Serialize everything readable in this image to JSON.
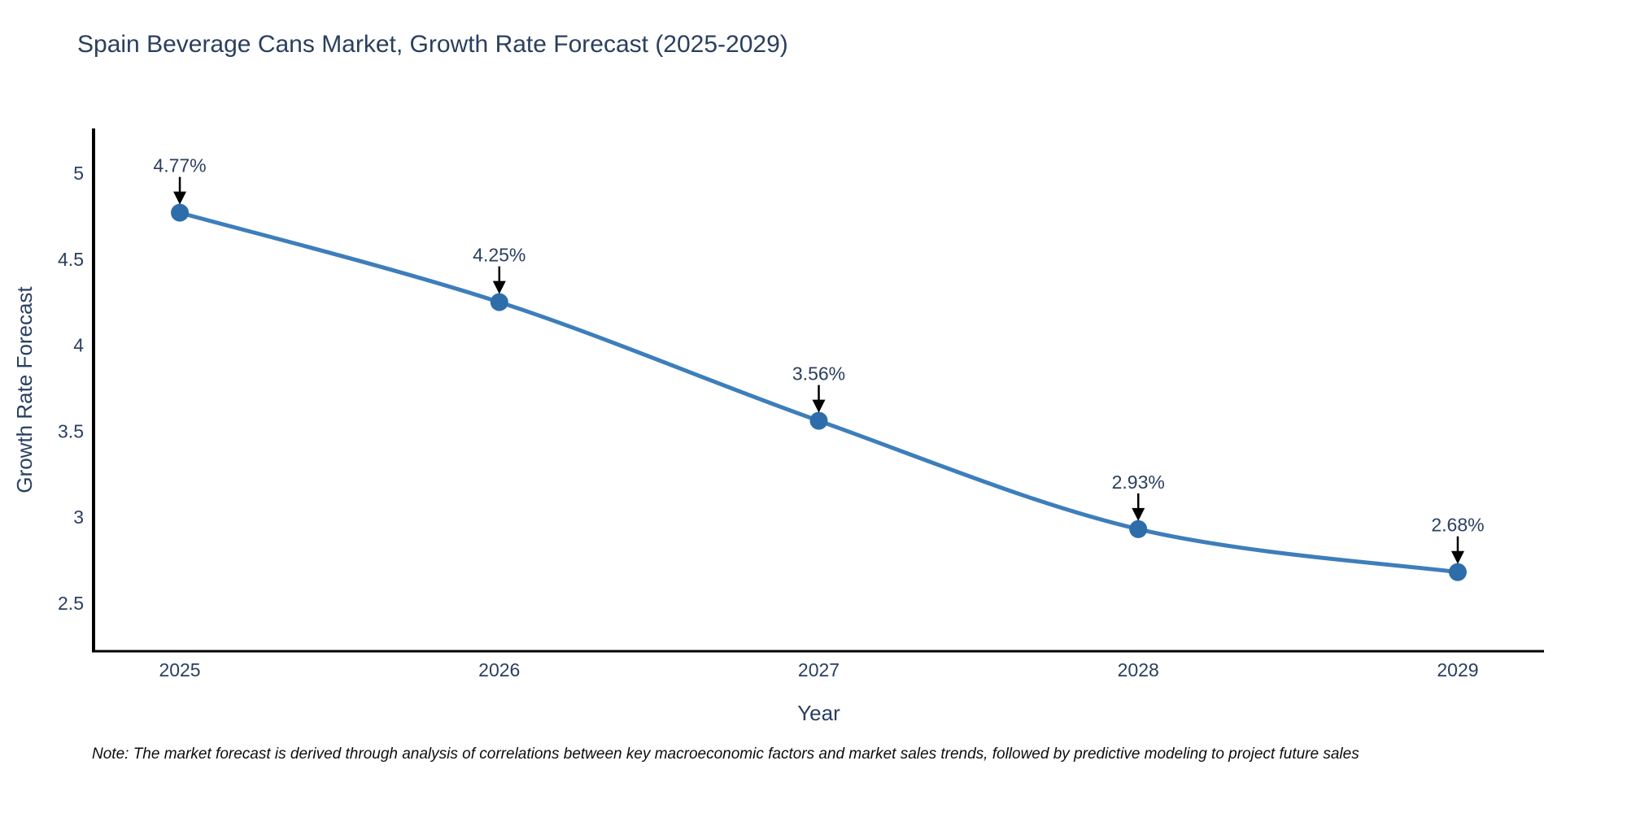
{
  "header": {
    "title": "Spain Beverage Cans Market, Growth Rate Forecast (2025-2029)"
  },
  "footnote": {
    "text": "Note: The market forecast is derived through analysis of correlations between key macroeconomic factors and market sales trends, followed by predictive modeling to project future sales"
  },
  "chart_data": {
    "type": "line",
    "title": "Spain Beverage Cans Market, Growth Rate Forecast (2025-2029)",
    "x": [
      2025,
      2026,
      2027,
      2028,
      2029
    ],
    "values": [
      4.77,
      4.25,
      3.56,
      2.93,
      2.68
    ],
    "point_labels": [
      "4.77%",
      "4.25%",
      "3.56%",
      "2.93%",
      "2.68%"
    ],
    "xtick_labels": [
      "2025",
      "2026",
      "2027",
      "2028",
      "2029"
    ],
    "yticks": [
      2.5,
      3,
      3.5,
      4,
      4.5,
      5
    ],
    "ytick_labels": [
      "2.5",
      "3",
      "3.5",
      "4",
      "4.5",
      "5"
    ],
    "xlabel": "Year",
    "ylabel": "Growth Rate Forecast",
    "xlim": [
      2024.73,
      2029.27
    ],
    "ylim": [
      2.22,
      5.26
    ],
    "grid": false,
    "legend_position": "none",
    "line_shape": "spline",
    "colors": {
      "line": "#3d7ebb",
      "marker": "#2d6eaa",
      "annotation_arrow": "#000000",
      "text": "#2a3f5f",
      "axis_line": "#000000"
    }
  }
}
